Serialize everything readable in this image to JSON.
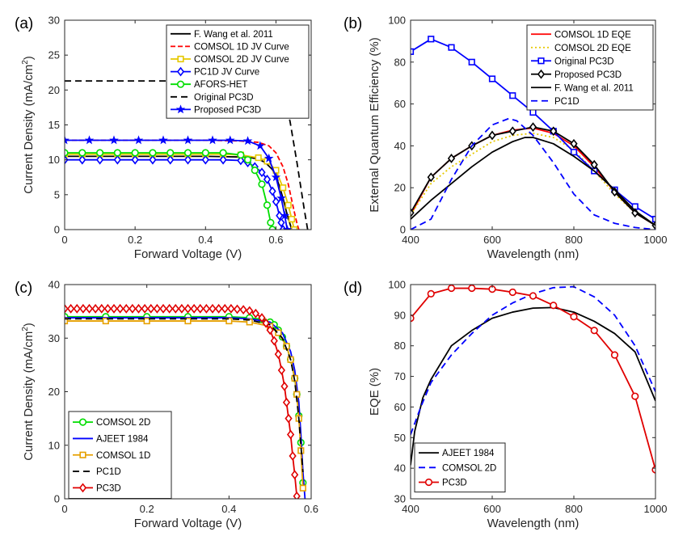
{
  "colors": {
    "black": "#000000",
    "red": "#ff0000",
    "blue": "#0000ff",
    "yellow": "#e6c800",
    "orange": "#e6a000",
    "green": "#00dd00",
    "darkred": "#e00000"
  },
  "chart_data": [
    {
      "panel_label": "(a)",
      "type": "line",
      "xlabel": "Forward Voltage (V)",
      "ylabel": "Current Density (mA/cm",
      "ylabel_sup": "2",
      "ylabel_end": ")",
      "xlim": [
        0,
        0.7
      ],
      "ylim": [
        0,
        30
      ],
      "xticks": [
        0,
        0.2,
        0.4,
        0.6
      ],
      "xtick_labels": [
        "0",
        "0.2",
        "0.4",
        "0.6"
      ],
      "yticks": [
        0,
        5,
        10,
        15,
        20,
        25,
        30
      ],
      "ytick_labels": [
        "0",
        "5",
        "10",
        "15",
        "20",
        "25",
        "30"
      ],
      "legend_position": "top-right",
      "series": [
        {
          "name": "F. Wang et al. 2011",
          "color": "#000000",
          "dash": "",
          "marker": "none",
          "x": [
            0,
            0.1,
            0.2,
            0.3,
            0.4,
            0.45,
            0.5,
            0.53,
            0.55,
            0.57,
            0.59,
            0.6,
            0.61,
            0.62,
            0.63,
            0.64,
            0.645
          ],
          "y": [
            10.5,
            10.5,
            10.5,
            10.5,
            10.5,
            10.45,
            10.4,
            10.3,
            10.1,
            9.6,
            8.6,
            7.6,
            6.2,
            4.5,
            2.5,
            0.8,
            0
          ]
        },
        {
          "name": "COMSOL 1D JV Curve",
          "color": "#ff0000",
          "dash": "6,3",
          "marker": "none",
          "x": [
            0,
            0.1,
            0.2,
            0.3,
            0.4,
            0.5,
            0.55,
            0.58,
            0.6,
            0.62,
            0.635,
            0.65,
            0.66,
            0.665
          ],
          "y": [
            12.8,
            12.8,
            12.8,
            12.8,
            12.8,
            12.7,
            12.5,
            12.0,
            11.0,
            9.0,
            6.5,
            3.0,
            0.8,
            0
          ]
        },
        {
          "name": "COMSOL 2D JV Curve",
          "color": "#e6c800",
          "dash": "",
          "marker": "square",
          "x": [
            0,
            0.05,
            0.1,
            0.15,
            0.2,
            0.25,
            0.3,
            0.35,
            0.4,
            0.45,
            0.5,
            0.55,
            0.575,
            0.6,
            0.62,
            0.635,
            0.645,
            0.652
          ],
          "y": [
            10.8,
            10.8,
            10.8,
            10.8,
            10.8,
            10.8,
            10.8,
            10.8,
            10.8,
            10.8,
            10.7,
            10.3,
            9.8,
            8.5,
            6.0,
            3.5,
            1.5,
            0
          ]
        },
        {
          "name": "PC1D JV Curve",
          "color": "#0000ff",
          "dash": "",
          "marker": "diamond",
          "x": [
            0,
            0.05,
            0.1,
            0.15,
            0.2,
            0.25,
            0.3,
            0.35,
            0.4,
            0.45,
            0.5,
            0.52,
            0.54,
            0.56,
            0.575,
            0.59,
            0.6,
            0.61,
            0.615,
            0.62
          ],
          "y": [
            10.0,
            10.0,
            10.0,
            10.0,
            10.0,
            10.0,
            10.0,
            10.0,
            10.0,
            10.0,
            9.9,
            9.6,
            9.0,
            8.2,
            7.2,
            5.5,
            4.0,
            2.0,
            1.0,
            0
          ]
        },
        {
          "name": "AFORS-HET",
          "color": "#00dd00",
          "dash": "",
          "marker": "circle",
          "x": [
            0,
            0.05,
            0.1,
            0.15,
            0.2,
            0.25,
            0.3,
            0.35,
            0.4,
            0.45,
            0.5,
            0.52,
            0.54,
            0.56,
            0.575,
            0.585,
            0.59
          ],
          "y": [
            11.0,
            11.0,
            11.0,
            11.0,
            11.0,
            11.0,
            11.0,
            11.0,
            11.0,
            11.0,
            10.7,
            10.0,
            8.5,
            6.5,
            3.5,
            1.0,
            0
          ]
        },
        {
          "name": "Original PC3D",
          "color": "#000000",
          "dash": "8,5",
          "marker": "none",
          "x": [
            0,
            0.5,
            0.6,
            0.62,
            0.64,
            0.66,
            0.68,
            0.69
          ],
          "y": [
            21.3,
            21.3,
            21.2,
            19.8,
            15.5,
            9.5,
            3.0,
            0
          ]
        },
        {
          "name": "Proposed PC3D",
          "color": "#0000ff",
          "dash": "",
          "marker": "star",
          "x": [
            0,
            0.07,
            0.14,
            0.21,
            0.28,
            0.35,
            0.42,
            0.47,
            0.52,
            0.555,
            0.58,
            0.6,
            0.615,
            0.625,
            0.632
          ],
          "y": [
            12.8,
            12.8,
            12.8,
            12.8,
            12.8,
            12.8,
            12.8,
            12.8,
            12.7,
            12.0,
            10.2,
            7.5,
            4.5,
            2.0,
            0
          ]
        }
      ]
    },
    {
      "panel_label": "(b)",
      "type": "line",
      "xlabel": "Wavelength (nm)",
      "ylabel": "External Quantum Efficiency (%)",
      "xlim": [
        400,
        1000
      ],
      "ylim": [
        0,
        100
      ],
      "xticks": [
        400,
        600,
        800,
        1000
      ],
      "xtick_labels": [
        "400",
        "600",
        "800",
        "1000"
      ],
      "yticks": [
        0,
        20,
        40,
        60,
        80,
        100
      ],
      "ytick_labels": [
        "0",
        "20",
        "40",
        "60",
        "80",
        "100"
      ],
      "legend_position": "top-right",
      "series": [
        {
          "name": "COMSOL 1D EQE",
          "color": "#ff0000",
          "dash": "",
          "marker": "none",
          "x": [
            400,
            450,
            500,
            550,
            600,
            650,
            700,
            750,
            800,
            850,
            900,
            950,
            1000
          ],
          "y": [
            7,
            25,
            34,
            40,
            45,
            47.5,
            48.5,
            46,
            40,
            30,
            18,
            8,
            2
          ]
        },
        {
          "name": "COMSOL 2D EQE",
          "color": "#e6c800",
          "dash": "2,3",
          "marker": "none",
          "x": [
            400,
            450,
            500,
            550,
            600,
            650,
            700,
            750,
            800,
            850,
            900,
            950,
            1000
          ],
          "y": [
            7,
            22,
            30,
            36,
            42,
            45,
            46,
            44,
            38,
            28,
            17,
            8,
            2
          ]
        },
        {
          "name": "Original PC3D",
          "color": "#0000ff",
          "dash": "",
          "marker": "square",
          "x": [
            400,
            450,
            500,
            550,
            600,
            650,
            700,
            750,
            800,
            850,
            900,
            950,
            1000
          ],
          "y": [
            85,
            91,
            87,
            80,
            72,
            64,
            56,
            47,
            37,
            28,
            19,
            11,
            5
          ]
        },
        {
          "name": "Proposed PC3D",
          "color": "#000000",
          "dash": "",
          "marker": "diamond",
          "x": [
            400,
            450,
            500,
            550,
            600,
            650,
            700,
            750,
            800,
            850,
            900,
            950,
            1000
          ],
          "y": [
            8,
            25,
            34,
            40,
            45,
            47,
            49,
            47,
            41,
            31,
            18,
            8,
            2
          ]
        },
        {
          "name": "F. Wang et al. 2011",
          "color": "#000000",
          "dash": "",
          "marker": "none",
          "x": [
            400,
            450,
            500,
            550,
            600,
            650,
            680,
            700,
            750,
            800,
            850,
            900,
            950,
            1000
          ],
          "y": [
            5,
            14,
            22,
            30,
            37,
            42,
            44,
            44,
            41,
            35,
            28,
            19,
            9,
            2
          ]
        },
        {
          "name": "PC1D",
          "color": "#0000ff",
          "dash": "8,5",
          "marker": "none",
          "x": [
            400,
            450,
            500,
            550,
            600,
            640,
            660,
            700,
            750,
            800,
            850,
            900,
            950,
            1000
          ],
          "y": [
            0,
            5,
            24,
            40,
            50,
            53,
            52,
            45,
            32,
            17,
            7,
            3,
            1,
            0
          ]
        }
      ]
    },
    {
      "panel_label": "(c)",
      "type": "line",
      "xlabel": "Forward Voltage (V)",
      "ylabel": "Current Density (mA/cm",
      "ylabel_sup": "2",
      "ylabel_end": ")",
      "xlim": [
        0,
        0.6
      ],
      "ylim": [
        0,
        40
      ],
      "xticks": [
        0,
        0.2,
        0.4,
        0.6
      ],
      "xtick_labels": [
        "0",
        "0.2",
        "0.4",
        "0.6"
      ],
      "yticks": [
        0,
        10,
        20,
        30,
        40
      ],
      "ytick_labels": [
        "0",
        "10",
        "20",
        "30",
        "40"
      ],
      "legend_position": "bottom-left",
      "series": [
        {
          "name": "COMSOL 2D",
          "color": "#00dd00",
          "dash": "",
          "marker": "circle",
          "x": [
            0,
            0.1,
            0.2,
            0.3,
            0.4,
            0.45,
            0.48,
            0.5,
            0.51,
            0.52,
            0.53,
            0.54,
            0.55,
            0.56,
            0.565,
            0.57,
            0.575,
            0.58
          ],
          "y": [
            34,
            34,
            34,
            34,
            34,
            33.8,
            33.5,
            33.0,
            32.5,
            31.5,
            30.2,
            28.5,
            26,
            22.5,
            19.5,
            15.5,
            10.5,
            3
          ]
        },
        {
          "name": "AJEET 1984",
          "color": "#0000ff",
          "dash": "",
          "marker": "none",
          "x": [
            0,
            0.1,
            0.2,
            0.3,
            0.4,
            0.45,
            0.5,
            0.53,
            0.55,
            0.56,
            0.57,
            0.575,
            0.58,
            0.585
          ],
          "y": [
            33.8,
            33.8,
            33.8,
            33.8,
            33.8,
            33.6,
            33,
            31,
            27.5,
            24,
            18,
            12,
            5,
            0
          ]
        },
        {
          "name": "COMSOL 1D",
          "color": "#e6a000",
          "dash": "",
          "marker": "square",
          "x": [
            0,
            0.1,
            0.2,
            0.3,
            0.4,
            0.45,
            0.5,
            0.52,
            0.54,
            0.55,
            0.56,
            0.565,
            0.57,
            0.575,
            0.58
          ],
          "y": [
            33.2,
            33.2,
            33.2,
            33.2,
            33.2,
            33.0,
            32.2,
            31,
            28.5,
            26,
            22.5,
            19.5,
            15,
            9,
            2
          ]
        },
        {
          "name": "PC1D",
          "color": "#000000",
          "dash": "8,5",
          "marker": "none",
          "x": [
            0,
            0.1,
            0.2,
            0.3,
            0.4,
            0.45,
            0.5,
            0.53,
            0.55,
            0.56,
            0.57,
            0.58
          ],
          "y": [
            33.6,
            33.6,
            33.6,
            33.6,
            33.6,
            33.4,
            32.5,
            30,
            26,
            22,
            15,
            5
          ]
        },
        {
          "name": "PC3D",
          "color": "#e00000",
          "dash": "",
          "marker": "diamond",
          "x": [
            0,
            0.015,
            0.03,
            0.045,
            0.06,
            0.075,
            0.09,
            0.105,
            0.12,
            0.135,
            0.15,
            0.165,
            0.18,
            0.195,
            0.21,
            0.225,
            0.24,
            0.255,
            0.27,
            0.285,
            0.3,
            0.315,
            0.33,
            0.345,
            0.36,
            0.375,
            0.39,
            0.405,
            0.42,
            0.435,
            0.45,
            0.465,
            0.48,
            0.49,
            0.5,
            0.51,
            0.52,
            0.528,
            0.535,
            0.54,
            0.545,
            0.55,
            0.555,
            0.56,
            0.565
          ],
          "y": [
            35.5,
            35.5,
            35.5,
            35.5,
            35.5,
            35.5,
            35.5,
            35.5,
            35.5,
            35.5,
            35.5,
            35.5,
            35.5,
            35.5,
            35.5,
            35.5,
            35.5,
            35.5,
            35.5,
            35.5,
            35.5,
            35.5,
            35.5,
            35.5,
            35.5,
            35.5,
            35.5,
            35.5,
            35.4,
            35.3,
            35.1,
            34.6,
            33.8,
            32.8,
            31.5,
            29.5,
            27,
            24,
            21,
            18,
            15,
            12,
            8,
            4.5,
            0.5
          ]
        }
      ]
    },
    {
      "panel_label": "(d)",
      "type": "line",
      "xlabel": "Wavelength (nm)",
      "ylabel": "EQE (%)",
      "xlim": [
        400,
        1000
      ],
      "ylim": [
        30,
        100
      ],
      "xticks": [
        400,
        600,
        800,
        1000
      ],
      "xtick_labels": [
        "400",
        "600",
        "800",
        "1000"
      ],
      "yticks": [
        30,
        40,
        50,
        60,
        70,
        80,
        90,
        100
      ],
      "ytick_labels": [
        "30",
        "40",
        "50",
        "60",
        "70",
        "80",
        "90",
        "100"
      ],
      "legend_position": "bottom-left",
      "series": [
        {
          "name": "AJEET 1984",
          "color": "#000000",
          "dash": "",
          "marker": "none",
          "x": [
            400,
            410,
            430,
            450,
            500,
            550,
            600,
            650,
            700,
            750,
            800,
            850,
            900,
            950,
            1000
          ],
          "y": [
            41,
            52,
            63,
            69,
            80,
            85,
            89,
            91,
            92.3,
            92.5,
            91,
            88,
            84,
            78,
            62
          ]
        },
        {
          "name": "COMSOL 2D",
          "color": "#0000ff",
          "dash": "8,5",
          "marker": "none",
          "x": [
            400,
            425,
            450,
            500,
            550,
            600,
            650,
            700,
            750,
            800,
            850,
            900,
            950,
            1000
          ],
          "y": [
            51,
            60,
            68,
            77,
            84,
            90,
            94,
            97,
            99,
            99.3,
            96,
            90,
            80,
            65
          ]
        },
        {
          "name": "PC3D",
          "color": "#e00000",
          "dash": "",
          "marker": "circle",
          "x": [
            400,
            450,
            500,
            550,
            600,
            650,
            700,
            750,
            800,
            850,
            900,
            950,
            1000
          ],
          "y": [
            89,
            97,
            98.8,
            98.8,
            98.5,
            97.5,
            96.3,
            93.2,
            89.5,
            85,
            77,
            63.5,
            39.5
          ]
        }
      ]
    }
  ]
}
